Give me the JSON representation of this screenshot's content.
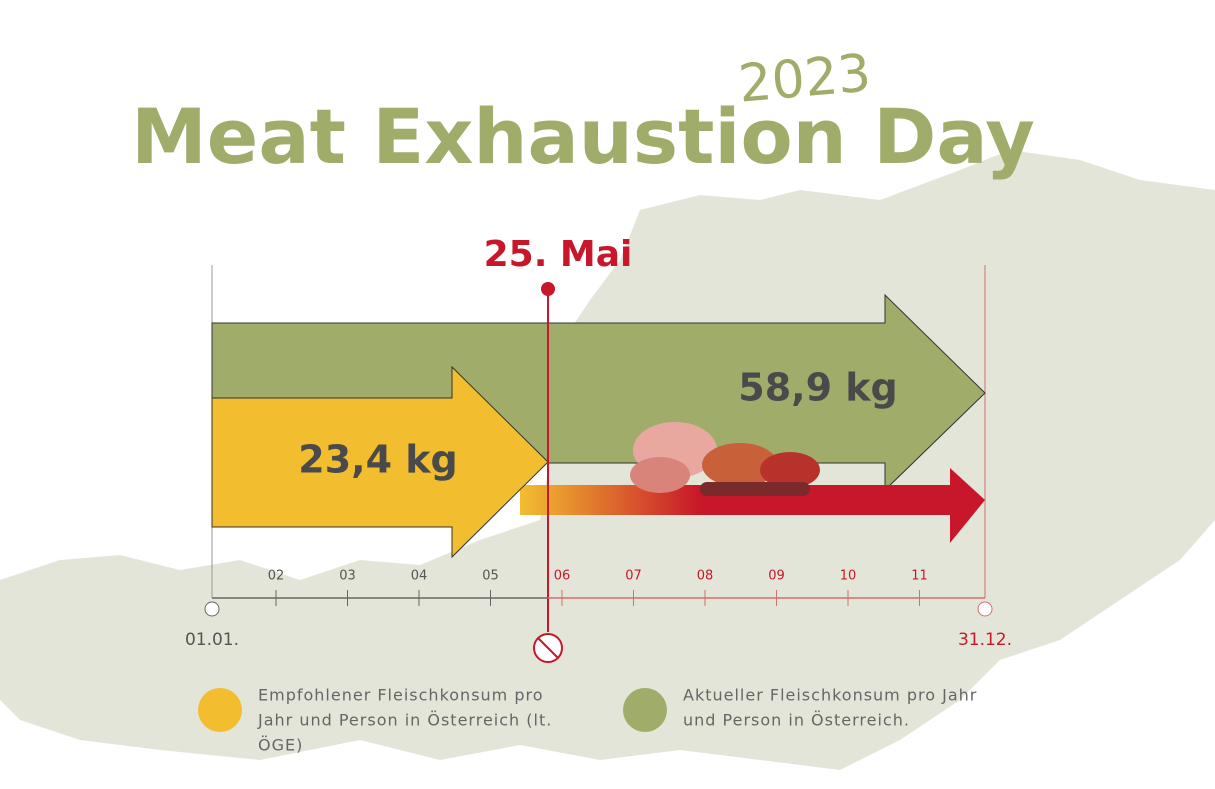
{
  "title": "Meat Exhaustion Day",
  "year": "2023",
  "date_marker": "25. Mai",
  "arrows": [
    {
      "label": "23,4 kg"
    },
    {
      "label": "58,9 kg"
    }
  ],
  "timeline": {
    "start": "01.01.",
    "end": "31.12.",
    "months": [
      "02",
      "03",
      "04",
      "05",
      "06",
      "07",
      "08",
      "09",
      "10",
      "11"
    ]
  },
  "legend": [
    {
      "lines": [
        "Empfohlener Fleischkonsum pro",
        "Jahr und Person in Österreich (lt.",
        "ÖGE)"
      ]
    },
    {
      "lines": [
        "Aktueller Fleischkonsum pro Jahr",
        "und Person in Österreich."
      ]
    }
  ]
}
